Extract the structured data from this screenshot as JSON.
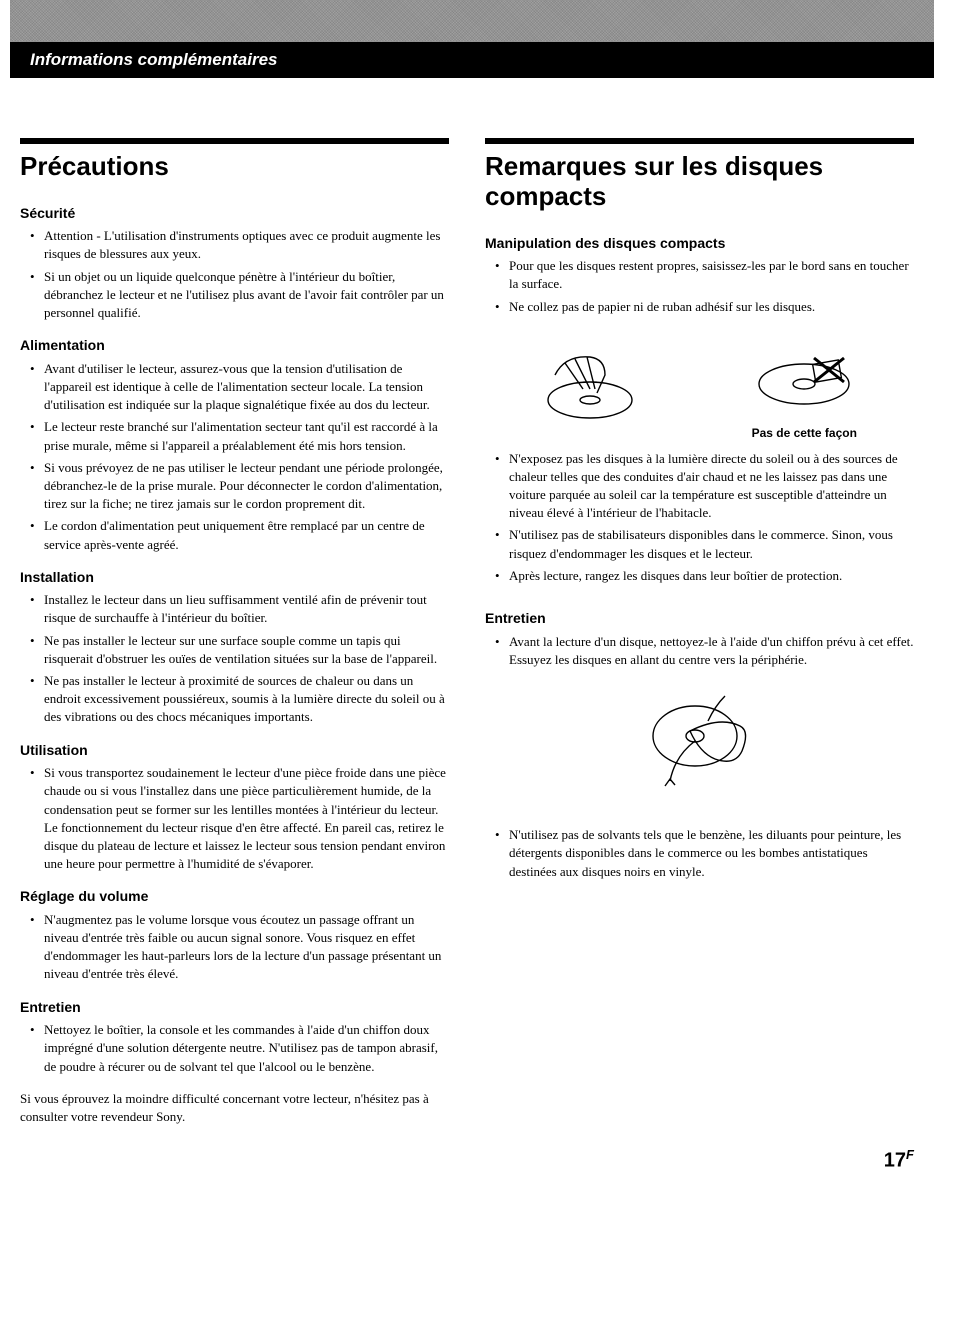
{
  "header": {
    "title": "Informations complémentaires"
  },
  "left": {
    "title": "Précautions",
    "sections": [
      {
        "heading": "Sécurité",
        "items": [
          "Attention - L'utilisation d'instruments optiques avec ce produit augmente les risques de blessures aux yeux.",
          "Si un objet ou un liquide quelconque pénètre à l'intérieur du boîtier, débranchez le lecteur et ne l'utilisez plus avant de l'avoir fait contrôler par un personnel qualifié."
        ]
      },
      {
        "heading": "Alimentation",
        "items": [
          "Avant d'utiliser le lecteur, assurez-vous que la tension d'utilisation de l'appareil est identique à celle de l'alimentation secteur locale. La tension d'utilisation est indiquée sur la plaque signalétique fixée au dos du lecteur.",
          "Le lecteur reste branché sur l'alimentation secteur tant qu'il est raccordé à la prise murale, même si l'appareil a préalablement été mis hors tension.",
          "Si vous prévoyez de ne pas utiliser le lecteur pendant une période prolongée, débranchez-le de la prise murale. Pour déconnecter le cordon d'alimentation, tirez sur la fiche; ne tirez jamais sur le cordon proprement dit.",
          "Le cordon d'alimentation peut uniquement être remplacé par un centre de service après-vente agréé."
        ]
      },
      {
        "heading": "Installation",
        "items": [
          "Installez le lecteur dans un lieu suffisamment ventilé afin de prévenir tout risque de surchauffe à l'intérieur du boîtier.",
          "Ne pas installer le lecteur sur une surface souple comme un tapis qui risquerait d'obstruer les ouïes de ventilation situées sur la base de l'appareil.",
          "Ne pas installer le lecteur à proximité de sources de chaleur ou dans un endroit excessivement poussiéreux, soumis à la lumière directe du soleil ou à des vibrations ou des chocs mécaniques importants."
        ]
      },
      {
        "heading": "Utilisation",
        "items": [
          "Si vous transportez soudainement le lecteur d'une pièce froide dans une pièce chaude ou si vous l'installez dans une pièce particulièrement humide, de la condensation peut se former sur les lentilles montées à l'intérieur du lecteur. Le fonctionnement du lecteur risque d'en être affecté. En pareil cas, retirez le disque du plateau de lecture et laissez le lecteur sous tension pendant environ une heure pour permettre à l'humidité de s'évaporer."
        ]
      },
      {
        "heading": "Réglage du volume",
        "items": [
          "N'augmentez pas le volume lorsque vous écoutez un passage offrant un niveau d'entrée très faible ou aucun signal sonore. Vous risquez en effet d'endommager les haut-parleurs lors de la lecture d'un passage présentant un niveau d'entrée très élevé."
        ]
      },
      {
        "heading": "Entretien",
        "items": [
          "Nettoyez le boîtier, la console et les commandes à l'aide d'un chiffon doux imprégné d'une solution détergente neutre. N'utilisez pas de tampon abrasif, de poudre à récurer ou de solvant tel que l'alcool ou le benzène."
        ]
      }
    ],
    "closing": "Si vous éprouvez la moindre difficulté concernant votre lecteur, n'hésitez pas à consulter votre revendeur Sony."
  },
  "right": {
    "title": "Remarques sur les disques compacts",
    "section1": {
      "heading": "Manipulation des disques compacts",
      "items_before": [
        "Pour que les disques restent propres, saisissez-les par le bord sans en toucher la surface.",
        "Ne collez pas de papier ni de ruban adhésif sur les disques."
      ],
      "fig_caption": "Pas de cette façon",
      "items_after": [
        "N'exposez pas les disques à la lumière directe du soleil ou à des sources de chaleur telles que des conduites d'air chaud et ne les laissez pas dans une voiture parquée au soleil car la température est susceptible d'atteindre un niveau élevé à l'intérieur de l'habitacle.",
        "N'utilisez pas de stabilisateurs disponibles dans le commerce. Sinon, vous risquez d'endommager les disques et le lecteur.",
        "Après lecture, rangez les disques dans leur boîtier de protection."
      ]
    },
    "section2": {
      "heading": "Entretien",
      "items_before": [
        "Avant la lecture d'un disque, nettoyez-le à l'aide d'un chiffon prévu à cet effet. Essuyez les disques en allant du centre vers la périphérie."
      ],
      "items_after": [
        "N'utilisez pas de solvants tels que le benzène, les diluants pour peinture, les détergents disponibles dans le commerce ou les bombes antistatiques destinées aux disques noirs en vinyle."
      ]
    }
  },
  "page": {
    "number": "17",
    "suffix": "F"
  }
}
